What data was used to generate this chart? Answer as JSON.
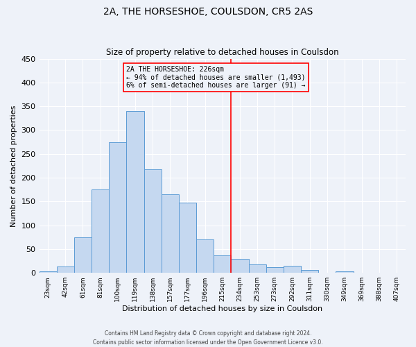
{
  "title": "2A, THE HORSESHOE, COULSDON, CR5 2AS",
  "subtitle": "Size of property relative to detached houses in Coulsdon",
  "xlabel": "Distribution of detached houses by size in Coulsdon",
  "ylabel": "Number of detached properties",
  "bar_labels": [
    "23sqm",
    "42sqm",
    "61sqm",
    "81sqm",
    "100sqm",
    "119sqm",
    "138sqm",
    "157sqm",
    "177sqm",
    "196sqm",
    "215sqm",
    "234sqm",
    "253sqm",
    "273sqm",
    "292sqm",
    "311sqm",
    "330sqm",
    "349sqm",
    "369sqm",
    "388sqm",
    "407sqm"
  ],
  "bar_values": [
    3,
    14,
    75,
    175,
    275,
    340,
    218,
    165,
    147,
    70,
    37,
    29,
    18,
    12,
    15,
    6,
    0,
    3,
    0,
    0,
    0
  ],
  "bar_color": "#c5d8f0",
  "bar_edge_color": "#5b9bd5",
  "vline_x": 10.5,
  "vline_color": "red",
  "annotation_title": "2A THE HORSESHOE: 226sqm",
  "annotation_line1": "← 94% of detached houses are smaller (1,493)",
  "annotation_line2": "6% of semi-detached houses are larger (91) →",
  "annotation_box_color": "red",
  "ylim": [
    0,
    450
  ],
  "yticks": [
    0,
    50,
    100,
    150,
    200,
    250,
    300,
    350,
    400,
    450
  ],
  "footer1": "Contains HM Land Registry data © Crown copyright and database right 2024.",
  "footer2": "Contains public sector information licensed under the Open Government Licence v3.0.",
  "bg_color": "#eef2f9",
  "grid_color": "#ffffff"
}
